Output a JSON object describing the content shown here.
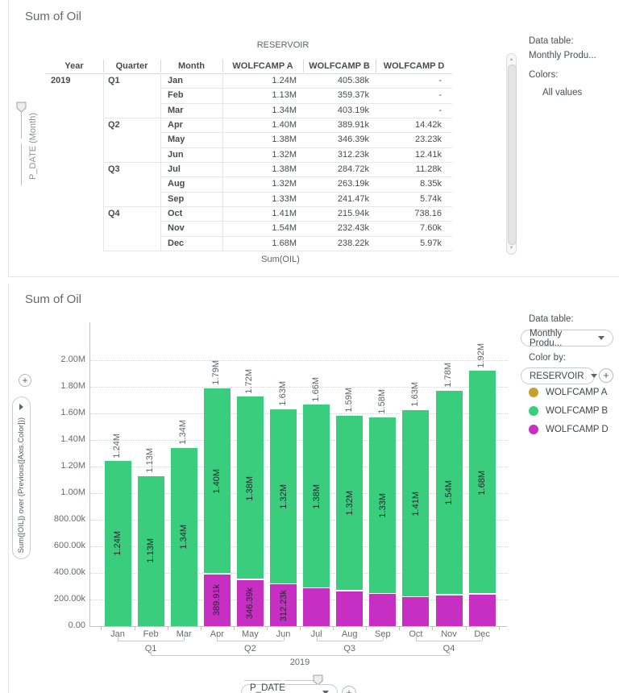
{
  "top_panel": {
    "title": "Sum of Oil",
    "column_axis_title": "RESERVOIR",
    "measure_label": "Sum(OIL)",
    "row_slider_label": "P_DATE (Month)",
    "columns": [
      "Year",
      "Quarter",
      "Month",
      "WOLFCAMP A",
      "WOLFCAMP B",
      "WOLFCAMP D"
    ],
    "rows": [
      {
        "year": "2019",
        "quarter": "Q1",
        "month": "Jan",
        "a": "1.24M",
        "b": "405.38k",
        "d": "-"
      },
      {
        "year": "",
        "quarter": "",
        "month": "Feb",
        "a": "1.13M",
        "b": "359.37k",
        "d": "-"
      },
      {
        "year": "",
        "quarter": "",
        "month": "Mar",
        "a": "1.34M",
        "b": "403.19k",
        "d": "-"
      },
      {
        "year": "",
        "quarter": "Q2",
        "month": "Apr",
        "a": "1.40M",
        "b": "389.91k",
        "d": "14.42k"
      },
      {
        "year": "",
        "quarter": "",
        "month": "May",
        "a": "1.38M",
        "b": "346.39k",
        "d": "23.23k"
      },
      {
        "year": "",
        "quarter": "",
        "month": "Jun",
        "a": "1.32M",
        "b": "312.23k",
        "d": "12.41k"
      },
      {
        "year": "",
        "quarter": "Q3",
        "month": "Jul",
        "a": "1.38M",
        "b": "284.72k",
        "d": "11.28k"
      },
      {
        "year": "",
        "quarter": "",
        "month": "Aug",
        "a": "1.32M",
        "b": "263.19k",
        "d": "8.35k"
      },
      {
        "year": "",
        "quarter": "",
        "month": "Sep",
        "a": "1.33M",
        "b": "241.47k",
        "d": "5.74k"
      },
      {
        "year": "",
        "quarter": "Q4",
        "month": "Oct",
        "a": "1.41M",
        "b": "215.94k",
        "d": "738.16"
      },
      {
        "year": "",
        "quarter": "",
        "month": "Nov",
        "a": "1.54M",
        "b": "232.43k",
        "d": "7.60k"
      },
      {
        "year": "",
        "quarter": "",
        "month": "Dec",
        "a": "1.68M",
        "b": "238.22k",
        "d": "5.97k"
      }
    ],
    "sidebar": {
      "data_table_label": "Data table:",
      "data_table_value": "Monthly Produ...",
      "colors_label": "Colors:",
      "colors_value": "All values"
    }
  },
  "bottom_panel": {
    "title": "Sum of Oil",
    "y_axis_selector": {
      "label": "Sum([OIL]) over (Previous([Axis.Color]))"
    },
    "x_axis_selector": {
      "label": "P_DATE (Month)"
    },
    "sidebar": {
      "data_table_label": "Data table:",
      "data_table_value": "Monthly Produ...",
      "color_by_label": "Color by:",
      "color_by_value": "RESERVOIR",
      "legend": [
        {
          "label": "WOLFCAMP A",
          "color": "#C7A12C"
        },
        {
          "label": "WOLFCAMP B",
          "color": "#3ACD7D"
        },
        {
          "label": "WOLFCAMP D",
          "color": "#C72EC2"
        }
      ]
    }
  },
  "chart_data": {
    "type": "bar",
    "stacked": true,
    "title": "Sum of Oil",
    "ylabel": "Sum([OIL]) over (Previous([Axis.Color]))",
    "xlabel": "P_DATE (Month)",
    "categories": [
      "Jan",
      "Feb",
      "Mar",
      "Apr",
      "May",
      "Jun",
      "Jul",
      "Aug",
      "Sep",
      "Oct",
      "Nov",
      "Dec"
    ],
    "quarters": [
      {
        "label": "Q1",
        "start": 0,
        "end": 2
      },
      {
        "label": "Q2",
        "start": 3,
        "end": 5
      },
      {
        "label": "Q3",
        "start": 6,
        "end": 8
      },
      {
        "label": "Q4",
        "start": 9,
        "end": 11
      }
    ],
    "year": "2019",
    "ylim": [
      0,
      2280000
    ],
    "grid": "dotted-horizontal",
    "legend_position": "right",
    "yticks": [
      {
        "value": 0,
        "label": "0.00"
      },
      {
        "value": 200000,
        "label": "200.00k"
      },
      {
        "value": 400000,
        "label": "400.00k"
      },
      {
        "value": 600000,
        "label": "600.00k"
      },
      {
        "value": 800000,
        "label": "800.00k"
      },
      {
        "value": 1000000,
        "label": "1.00M"
      },
      {
        "value": 1200000,
        "label": "1.20M"
      },
      {
        "value": 1400000,
        "label": "1.40M"
      },
      {
        "value": 1600000,
        "label": "1.60M"
      },
      {
        "value": 1800000,
        "label": "1.80M"
      },
      {
        "value": 2000000,
        "label": "2.00M"
      }
    ],
    "series": [
      {
        "name": "WOLFCAMP D",
        "color": "#C72EC2",
        "values": [
          0,
          0,
          0,
          389910,
          346390,
          312230,
          284720,
          263190,
          241470,
          215940,
          232430,
          238220
        ],
        "bar_labels": [
          "",
          "",
          "",
          "389.91k",
          "346.39k",
          "312.23k",
          "",
          "",
          "",
          "",
          "",
          ""
        ]
      },
      {
        "name": "WOLFCAMP B",
        "color": "#3ACD7D",
        "values": [
          1240000,
          1130000,
          1340000,
          1400000,
          1380000,
          1320000,
          1380000,
          1320000,
          1330000,
          1410000,
          1540000,
          1680000
        ],
        "bar_labels": [
          "1.24M",
          "1.13M",
          "1.34M",
          "1.40M",
          "1.38M",
          "1.32M",
          "1.38M",
          "1.32M",
          "1.33M",
          "1.41M",
          "1.54M",
          "1.68M"
        ]
      }
    ],
    "total_labels": [
      "1.24M",
      "1.13M",
      "1.34M",
      "1.79M",
      "1.72M",
      "1.63M",
      "1.66M",
      "1.59M",
      "1.58M",
      "1.63M",
      "1.78M",
      "1.92M"
    ]
  }
}
